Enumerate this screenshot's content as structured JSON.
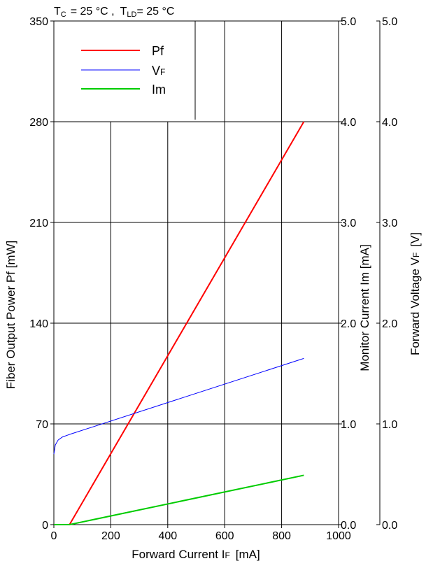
{
  "conditions": {
    "tc_label": "T",
    "tc_sub": "C",
    "tc_value": "=  25  °C ,",
    "tld_label": "T",
    "tld_sub": "LD",
    "tld_value": "= 25  °C"
  },
  "axes": {
    "x_title": "Forward  Current  I",
    "x_title_sub": "F",
    "x_title_unit": "[mA]",
    "y_left_title": "Fiber  Output  Power  Pf  [mW]",
    "y_right1_title": "Monitor  Current  Im  [mA]",
    "y_right2_title": "Forward  Voltage  V",
    "y_right2_sub": "F",
    "y_right2_unit": "[V]"
  },
  "legend": {
    "pf": "Pf",
    "vf": "V",
    "vf_sub": "F",
    "im": "Im"
  },
  "chart_data": {
    "type": "line",
    "title": "",
    "xlabel": "Forward Current IF [mA]",
    "ylabel": "Fiber Output Power Pf [mW]",
    "y2label": "Monitor Current Im [mA]",
    "y3label": "Forward Voltage VF [V]",
    "xlim": [
      0,
      1000
    ],
    "ylim": [
      0,
      350
    ],
    "y2lim": [
      0,
      5.0
    ],
    "y3lim": [
      0,
      5.0
    ],
    "x_ticks": [
      "0",
      "200",
      "400",
      "600",
      "800",
      "1000"
    ],
    "y_ticks": [
      "0",
      "70",
      "140",
      "210",
      "280",
      "350"
    ],
    "y2_ticks": [
      "0.0",
      "1.0",
      "2.0",
      "3.0",
      "4.0",
      "5.0"
    ],
    "y3_ticks": [
      "0.0",
      "1.0",
      "2.0",
      "3.0",
      "4.0",
      "5.0"
    ],
    "grid": true,
    "legend_position": "top-left",
    "series": [
      {
        "name": "Pf",
        "axis": "left",
        "color": "#ff0000",
        "x": [
          0,
          55,
          878
        ],
        "y": [
          0,
          0,
          280
        ]
      },
      {
        "name": "VF",
        "axis": "right-outer",
        "color": "#0000ff",
        "x": [
          0,
          5,
          15,
          30,
          50,
          60,
          878
        ],
        "y": [
          0.7,
          0.79,
          0.84,
          0.87,
          0.89,
          0.9,
          1.65
        ]
      },
      {
        "name": "Im",
        "axis": "right-inner",
        "color": "#00cc00",
        "x": [
          0,
          55,
          878
        ],
        "y": [
          0,
          0,
          0.49
        ]
      }
    ]
  }
}
